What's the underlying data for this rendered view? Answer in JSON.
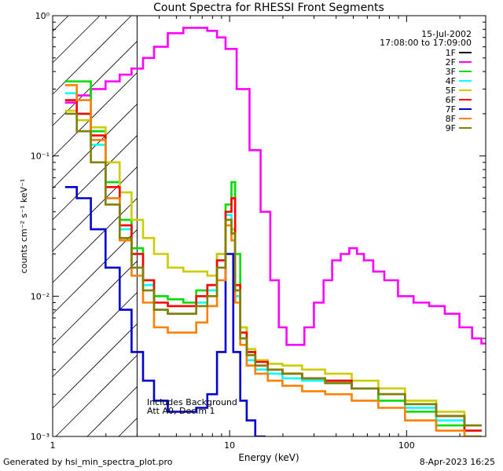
{
  "chart_data": {
    "type": "line",
    "title": "Count Spectra for RHESSI Front Segments",
    "xlabel": "Energy (keV)",
    "ylabel": "counts cm⁻² s⁻¹ keV⁻¹",
    "xscale": "log",
    "yscale": "log",
    "xlim": [
      1,
      280
    ],
    "ylim": [
      0.001,
      1
    ],
    "x_tick_labels": [
      {
        "value": 1,
        "label": "1"
      },
      {
        "value": 10,
        "label": "10"
      },
      {
        "value": 100,
        "label": "100"
      }
    ],
    "y_tick_labels": [
      {
        "value": 1,
        "label": "10⁰"
      },
      {
        "value": 0.1,
        "label": "10⁻¹"
      },
      {
        "value": 0.01,
        "label": "10⁻²"
      },
      {
        "value": 0.001,
        "label": "10⁻³"
      }
    ],
    "date": "15-Jul-2002",
    "time_range": "17:08:00 to 17:09:00",
    "shaded_region_max_keV": 3,
    "annotations": [
      "Includes Background",
      "Att A0, Decim 1"
    ],
    "legend_position": "top-right",
    "series": [
      {
        "name": "1F",
        "color": "#000000",
        "x": [],
        "y": []
      },
      {
        "name": "2F",
        "color": "#ff00ff",
        "x": [
          1.25,
          1.5,
          1.8,
          2.2,
          2.6,
          3.0,
          3.5,
          4.0,
          5.0,
          6.0,
          7.0,
          8.0,
          9.0,
          10.0,
          12.0,
          14.0,
          16.0,
          18.0,
          20.0,
          22.0,
          25.0,
          28.0,
          32.0,
          36.0,
          40.0,
          45.0,
          50.0,
          55.0,
          60.0,
          70.0,
          80.0,
          100.0,
          120.0,
          150.0,
          180.0,
          220.0,
          250.0,
          280.0
        ],
        "y": [
          0.24,
          0.27,
          0.3,
          0.34,
          0.38,
          0.42,
          0.5,
          0.6,
          0.75,
          0.82,
          0.82,
          0.78,
          0.7,
          0.58,
          0.3,
          0.11,
          0.04,
          0.013,
          0.006,
          0.0045,
          0.0045,
          0.006,
          0.009,
          0.013,
          0.018,
          0.02,
          0.022,
          0.02,
          0.018,
          0.015,
          0.013,
          0.01,
          0.009,
          0.0085,
          0.0075,
          0.006,
          0.005,
          0.0046
        ]
      },
      {
        "name": "3F",
        "color": "#00dd00",
        "x": [
          1.25,
          1.5,
          1.8,
          2.2,
          2.6,
          3.0,
          3.5,
          4.0,
          5.0,
          6.0,
          7.0,
          8.0,
          9.0,
          10.0,
          10.5,
          11.0,
          12.0,
          13.0,
          15.0,
          18.0,
          22.0,
          30.0,
          40.0,
          60.0,
          80.0,
          120.0,
          180.0,
          250.0
        ],
        "y": [
          0.34,
          0.34,
          0.15,
          0.065,
          0.035,
          0.022,
          0.013,
          0.01,
          0.0095,
          0.009,
          0.011,
          0.012,
          0.02,
          0.045,
          0.065,
          0.02,
          0.006,
          0.004,
          0.0035,
          0.003,
          0.0028,
          0.0026,
          0.0025,
          0.0022,
          0.0018,
          0.0015,
          0.0012,
          0.001
        ]
      },
      {
        "name": "4F",
        "color": "#00ffff",
        "x": [
          1.25,
          1.5,
          1.8,
          2.2,
          2.6,
          3.0,
          3.5,
          4.0,
          5.0,
          6.0,
          7.0,
          8.0,
          9.0,
          10.0,
          10.5,
          11.0,
          12.0,
          13.0,
          15.0,
          18.0,
          22.0,
          30.0,
          40.0,
          60.0,
          80.0,
          120.0,
          180.0,
          250.0
        ],
        "y": [
          0.28,
          0.2,
          0.12,
          0.05,
          0.03,
          0.02,
          0.012,
          0.008,
          0.0075,
          0.0075,
          0.009,
          0.011,
          0.018,
          0.038,
          0.03,
          0.01,
          0.005,
          0.0035,
          0.003,
          0.0028,
          0.0026,
          0.0025,
          0.0024,
          0.0022,
          0.002,
          0.0016,
          0.0013,
          0.0011
        ]
      },
      {
        "name": "5F",
        "color": "#cccc00",
        "x": [
          1.25,
          1.5,
          1.8,
          2.2,
          2.6,
          3.0,
          3.5,
          4.0,
          5.0,
          6.0,
          7.0,
          8.0,
          9.0,
          10.0,
          10.5,
          11.0,
          12.0,
          13.0,
          15.0,
          18.0,
          22.0,
          30.0,
          40.0,
          60.0,
          80.0,
          120.0,
          180.0,
          250.0
        ],
        "y": [
          0.21,
          0.18,
          0.16,
          0.09,
          0.055,
          0.035,
          0.026,
          0.02,
          0.016,
          0.015,
          0.015,
          0.014,
          0.02,
          0.035,
          0.03,
          0.012,
          0.006,
          0.0042,
          0.0035,
          0.0033,
          0.0032,
          0.003,
          0.0028,
          0.0025,
          0.0022,
          0.0018,
          0.0015,
          0.0012
        ]
      },
      {
        "name": "6F",
        "color": "#ff0000",
        "x": [
          1.25,
          1.5,
          1.8,
          2.2,
          2.6,
          3.0,
          3.5,
          4.0,
          5.0,
          6.0,
          7.0,
          8.0,
          9.0,
          10.0,
          10.5,
          11.0,
          12.0,
          13.0,
          15.0,
          18.0,
          22.0,
          30.0,
          40.0,
          60.0,
          80.0,
          120.0,
          180.0,
          250.0
        ],
        "y": [
          0.25,
          0.2,
          0.14,
          0.06,
          0.032,
          0.02,
          0.013,
          0.009,
          0.0085,
          0.0085,
          0.01,
          0.012,
          0.018,
          0.04,
          0.05,
          0.012,
          0.0055,
          0.004,
          0.0034,
          0.003,
          0.0028,
          0.0026,
          0.0025,
          0.0022,
          0.002,
          0.0017,
          0.0014,
          0.0011
        ]
      },
      {
        "name": "7F",
        "color": "#0000cc",
        "x": [
          1.25,
          1.5,
          1.8,
          2.2,
          2.6,
          3.0,
          3.5,
          4.0,
          5.0,
          6.0,
          7.0,
          8.0,
          9.0,
          10.0,
          11.0,
          12.0,
          13.0,
          15.0
        ],
        "y": [
          0.06,
          0.05,
          0.03,
          0.016,
          0.008,
          0.004,
          0.0025,
          0.0018,
          0.0015,
          0.0015,
          0.0016,
          0.002,
          0.004,
          0.02,
          0.004,
          0.0018,
          0.0013,
          0.001
        ]
      },
      {
        "name": "8F",
        "color": "#ff7f00",
        "x": [
          1.25,
          1.5,
          1.8,
          2.2,
          2.6,
          3.0,
          3.5,
          4.0,
          5.0,
          6.0,
          7.0,
          8.0,
          9.0,
          10.0,
          10.5,
          11.0,
          12.0,
          13.0,
          15.0,
          18.0,
          22.0,
          30.0,
          40.0,
          60.0,
          80.0,
          120.0,
          180.0,
          250.0
        ],
        "y": [
          0.32,
          0.25,
          0.13,
          0.05,
          0.025,
          0.014,
          0.009,
          0.006,
          0.0055,
          0.0055,
          0.0065,
          0.0085,
          0.013,
          0.032,
          0.025,
          0.009,
          0.0045,
          0.0032,
          0.0028,
          0.0025,
          0.0023,
          0.0021,
          0.002,
          0.0018,
          0.0016,
          0.0013,
          0.0011,
          0.001
        ]
      },
      {
        "name": "9F",
        "color": "#808000",
        "x": [
          1.25,
          1.5,
          1.8,
          2.2,
          2.6,
          3.0,
          3.5,
          4.0,
          5.0,
          6.0,
          7.0,
          8.0,
          9.0,
          10.0,
          10.5,
          11.0,
          12.0,
          13.0,
          15.0,
          18.0,
          22.0,
          30.0,
          40.0,
          60.0,
          80.0,
          120.0,
          180.0,
          250.0
        ],
        "y": [
          0.2,
          0.15,
          0.09,
          0.045,
          0.026,
          0.016,
          0.011,
          0.008,
          0.0075,
          0.0075,
          0.0085,
          0.01,
          0.016,
          0.035,
          0.028,
          0.011,
          0.005,
          0.0038,
          0.0032,
          0.003,
          0.0028,
          0.0026,
          0.0024,
          0.0022,
          0.002,
          0.0017,
          0.0014,
          0.0012
        ]
      }
    ]
  },
  "footer": {
    "left": "Generated by hsi_min_spectra_plot.pro",
    "right": "8-Apr-2023 16:25"
  }
}
